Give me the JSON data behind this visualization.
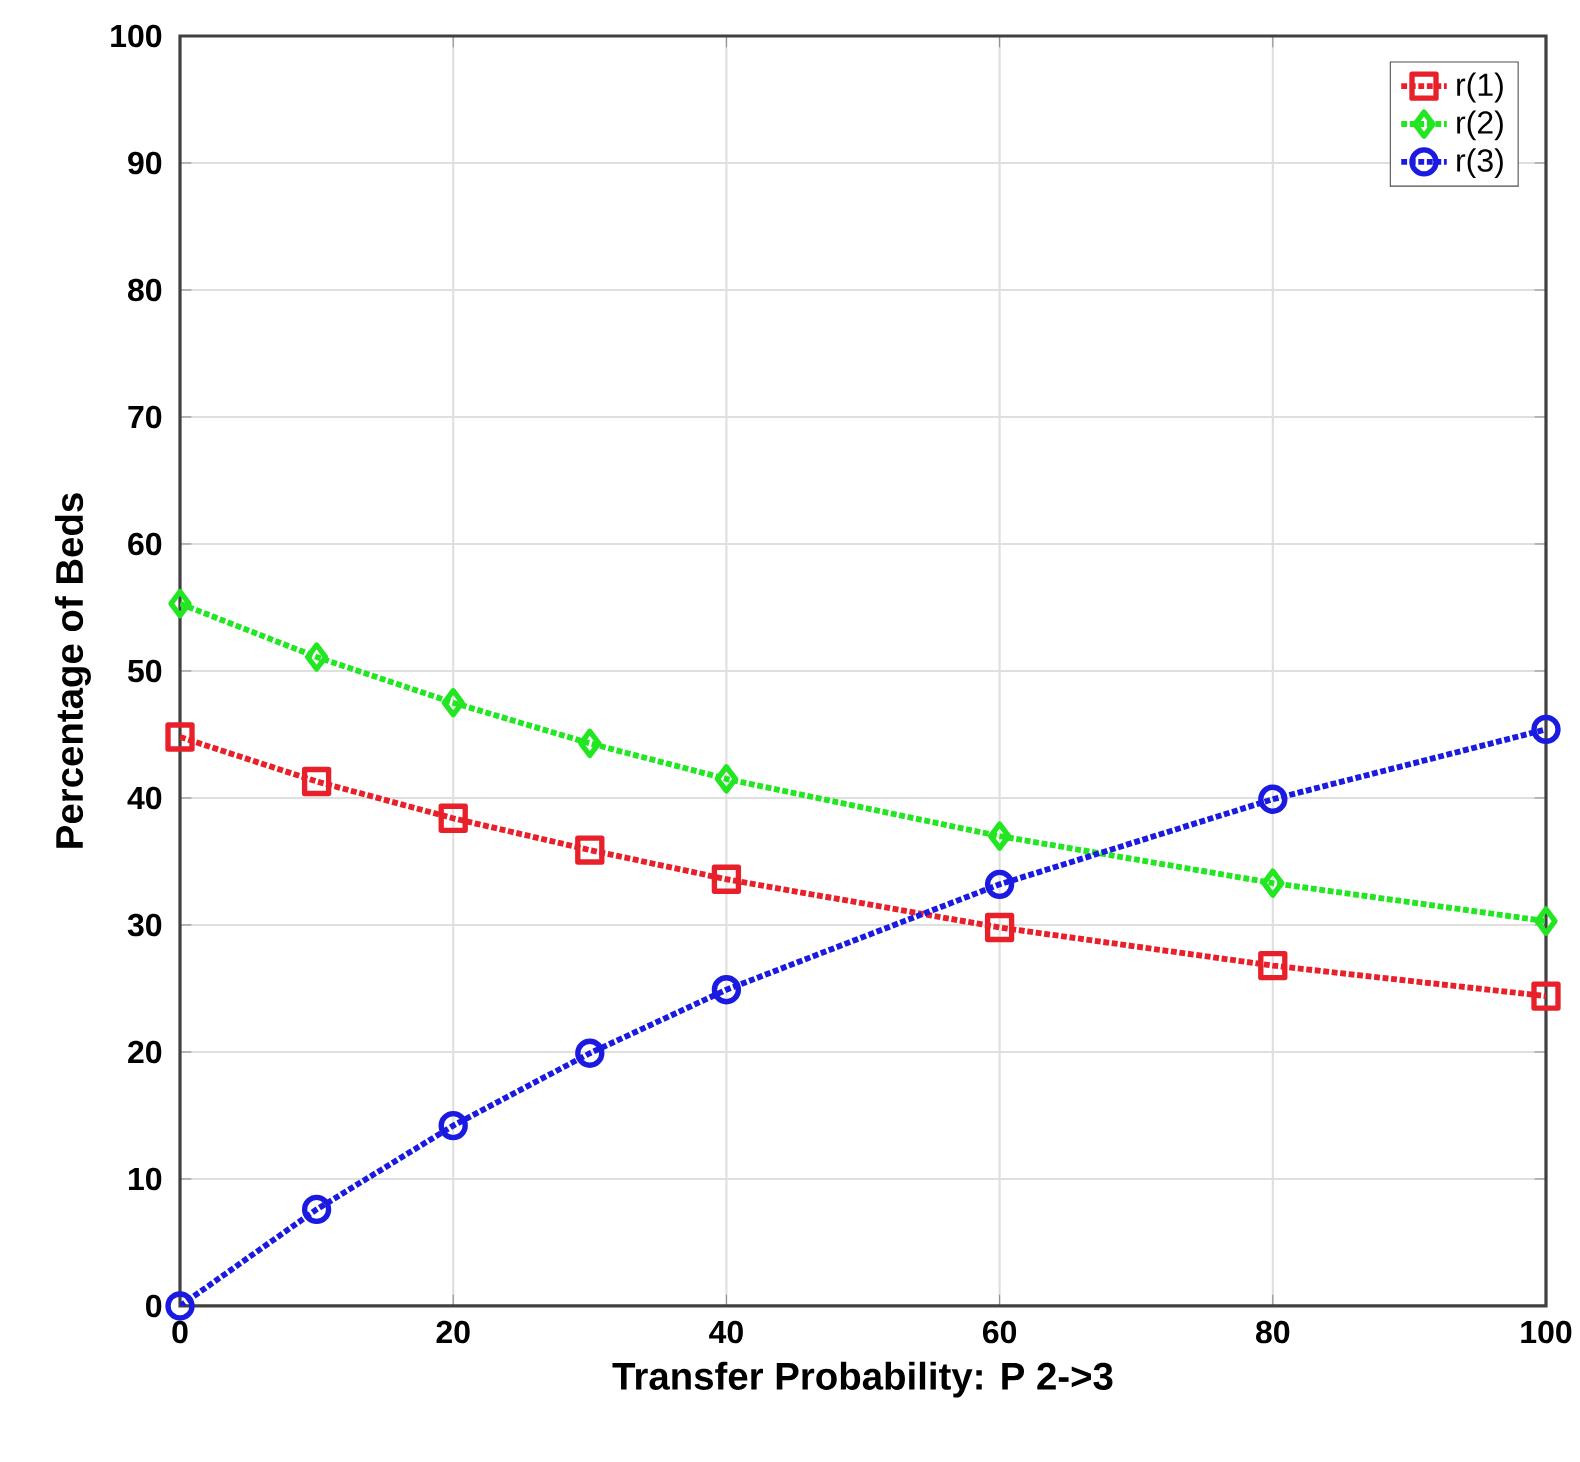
{
  "chart_data": {
    "type": "line",
    "xlabel": "Transfer Probability: P 2->3",
    "ylabel": "Percentage of Beds",
    "x": [
      0,
      10,
      20,
      30,
      40,
      60,
      80,
      100
    ],
    "series": [
      {
        "name": "r(1)",
        "color": "#e8202a",
        "marker": "square",
        "values": [
          44.8,
          41.3,
          38.4,
          35.9,
          33.6,
          29.8,
          26.8,
          24.4
        ]
      },
      {
        "name": "r(2)",
        "color": "#22e622",
        "marker": "diamond",
        "values": [
          55.3,
          51.1,
          47.5,
          44.3,
          41.5,
          37,
          33.3,
          30.3
        ]
      },
      {
        "name": "r(3)",
        "color": "#1a1ae0",
        "marker": "circle",
        "values": [
          0,
          7.6,
          14.2,
          19.9,
          24.9,
          33.2,
          39.9,
          45.4
        ]
      }
    ],
    "xlim": [
      0,
      100
    ],
    "ylim": [
      0,
      100
    ],
    "xticks": [
      0,
      20,
      40,
      60,
      80,
      100
    ],
    "yticks": [
      0,
      10,
      20,
      30,
      40,
      50,
      60,
      70,
      80,
      90,
      100
    ],
    "grid": true,
    "legend": "top right",
    "line_style": "dotted"
  }
}
